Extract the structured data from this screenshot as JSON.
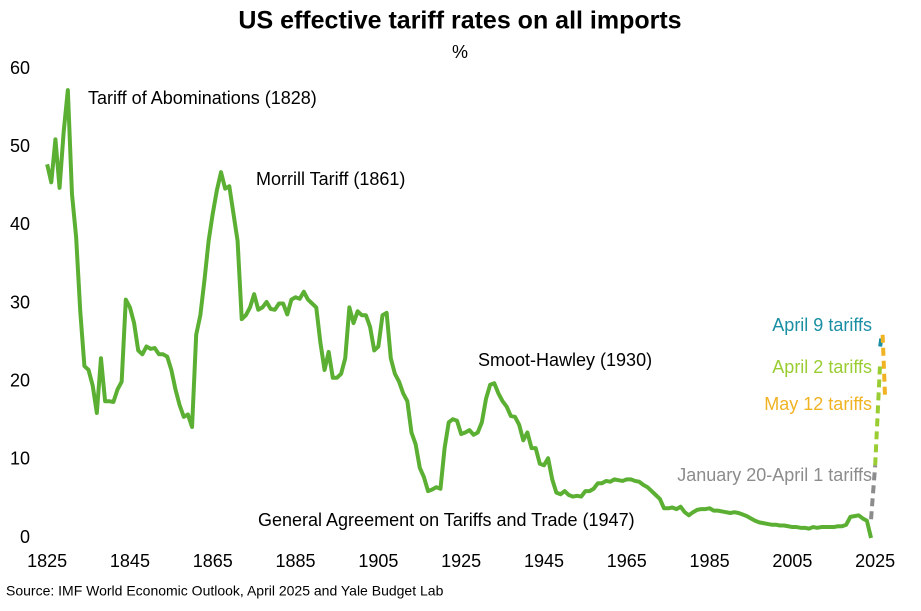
{
  "chart_data": {
    "type": "line",
    "title": "US effective tariff rates on all imports",
    "subtitle": "%",
    "source": "Source: IMF World Economic Outlook, April 2025 and Yale Budget Lab",
    "xlim": [
      1824,
      2028
    ],
    "xticks": [
      1825,
      1845,
      1865,
      1885,
      1905,
      1925,
      1945,
      1965,
      1985,
      2005,
      2025
    ],
    "ylim": [
      0,
      60
    ],
    "yticks": [
      0,
      10,
      20,
      30,
      40,
      50,
      60
    ],
    "annotations": [
      "Tariff of Abominations (1828)",
      "Morrill Tariff (1861)",
      "Smoot-Hawley (1930)",
      "General Agreement on Tariffs and Trade (1947)"
    ],
    "series": [
      {
        "color": "#5bb033",
        "dashed": false,
        "x": [
          1825,
          1826,
          1827,
          1828,
          1829,
          1830,
          1831,
          1832,
          1833,
          1834,
          1835,
          1836,
          1837,
          1838,
          1839,
          1840,
          1841,
          1842,
          1843,
          1844,
          1845,
          1846,
          1847,
          1848,
          1849,
          1850,
          1851,
          1852,
          1853,
          1854,
          1855,
          1856,
          1857,
          1858,
          1859,
          1860,
          1861,
          1862,
          1863,
          1864,
          1865,
          1866,
          1867,
          1868,
          1869,
          1870,
          1871,
          1872,
          1873,
          1874,
          1875,
          1876,
          1877,
          1878,
          1879,
          1880,
          1881,
          1882,
          1883,
          1884,
          1885,
          1886,
          1887,
          1888,
          1889,
          1890,
          1891,
          1892,
          1893,
          1894,
          1895,
          1896,
          1897,
          1898,
          1899,
          1900,
          1901,
          1902,
          1903,
          1904,
          1905,
          1906,
          1907,
          1908,
          1909,
          1910,
          1911,
          1912,
          1913,
          1914,
          1915,
          1916,
          1917,
          1918,
          1919,
          1920,
          1921,
          1922,
          1923,
          1924,
          1925,
          1926,
          1927,
          1928,
          1929,
          1930,
          1931,
          1932,
          1933,
          1934,
          1935,
          1936,
          1937,
          1938,
          1939,
          1940,
          1941,
          1942,
          1943,
          1944,
          1945,
          1946,
          1947,
          1948,
          1949,
          1950,
          1951,
          1952,
          1953,
          1954,
          1955,
          1956,
          1957,
          1958,
          1959,
          1960,
          1961,
          1962,
          1963,
          1964,
          1965,
          1966,
          1967,
          1968,
          1969,
          1970,
          1971,
          1972,
          1973,
          1974,
          1975,
          1976,
          1977,
          1978,
          1979,
          1980,
          1981,
          1982,
          1983,
          1984,
          1985,
          1986,
          1987,
          1988,
          1989,
          1990,
          1991,
          1992,
          1993,
          1994,
          1995,
          1996,
          1997,
          1998,
          1999,
          2000,
          2001,
          2002,
          2003,
          2004,
          2005,
          2006,
          2007,
          2008,
          2009,
          2010,
          2011,
          2012,
          2013,
          2014,
          2015,
          2016,
          2017,
          2018,
          2019,
          2020,
          2021,
          2022,
          2023,
          2024
        ],
        "values": [
          47.8,
          45.5,
          51,
          44.8,
          52,
          57.3,
          44,
          38.5,
          29,
          22,
          21.5,
          19.5,
          16,
          23,
          17.5,
          17.5,
          17.4,
          19,
          20,
          30.5,
          29.5,
          27.5,
          24,
          23.5,
          24.5,
          24.2,
          24.3,
          23.5,
          23.5,
          23.2,
          21.5,
          19,
          17,
          15.5,
          15.8,
          14.2,
          26,
          28.5,
          33,
          38,
          41.5,
          44.5,
          46.8,
          44.7,
          45,
          41.5,
          38,
          28,
          28.5,
          29.5,
          31.2,
          29.2,
          29.5,
          30.2,
          29.3,
          29.2,
          30,
          30,
          28.6,
          30.5,
          30.8,
          30.6,
          31.5,
          30.5,
          30,
          29.5,
          25,
          21.5,
          23.8,
          20.5,
          20.5,
          21,
          23,
          29.5,
          27.5,
          29,
          28.5,
          28.5,
          27,
          24,
          24.5,
          28.5,
          28.8,
          23,
          21,
          20,
          18.5,
          17.5,
          13.5,
          12,
          9,
          7.8,
          6,
          6.2,
          6.5,
          6.3,
          11.5,
          14.8,
          15.2,
          15,
          13.3,
          13.5,
          13.8,
          13.2,
          13.5,
          14.8,
          17.8,
          19.6,
          19.8,
          18.5,
          17.5,
          16.8,
          15.6,
          15.5,
          14.5,
          12.5,
          13.5,
          11.5,
          11.5,
          9.5,
          9.3,
          10.2,
          7.5,
          5.8,
          5.6,
          6,
          5.5,
          5.3,
          5.4,
          5.3,
          6,
          6,
          6.3,
          7,
          7,
          7.3,
          7.2,
          7.5,
          7.4,
          7.3,
          7.5,
          7.5,
          7.3,
          7.2,
          6.8,
          6.5,
          6,
          5.5,
          5,
          3.8,
          3.8,
          3.9,
          3.7,
          4,
          3.3,
          2.9,
          3.3,
          3.6,
          3.7,
          3.7,
          3.8,
          3.5,
          3.5,
          3.4,
          3.3,
          3.2,
          3.3,
          3.2,
          3,
          2.8,
          2.5,
          2.2,
          2,
          1.9,
          1.8,
          1.7,
          1.7,
          1.6,
          1.6,
          1.5,
          1.4,
          1.4,
          1.3,
          1.3,
          1.2,
          1.4,
          1.3,
          1.4,
          1.4,
          1.4,
          1.4,
          1.5,
          1.5,
          1.7,
          2.7,
          2.8,
          2.9,
          2.5,
          2.2,
          0
        ]
      },
      {
        "name": "January 20-April 1 tariffs",
        "color": "#8c8c8c",
        "dashed": true,
        "x": [
          2024,
          2025
        ],
        "values": [
          2.4,
          9.3
        ]
      },
      {
        "name": "April 2 tariffs",
        "color": "#9acd32",
        "dashed": true,
        "x": [
          2025,
          2026.2
        ],
        "values": [
          9.3,
          22.5
        ]
      },
      {
        "name": "April 9 tariffs",
        "color": "#1a8fa3",
        "dashed": true,
        "x": [
          2026.2,
          2026.6
        ],
        "values": [
          24.5,
          26
        ]
      },
      {
        "name": "May 12 tariffs",
        "color": "#f0b323",
        "dashed": true,
        "x": [
          2026.8,
          2027.4
        ],
        "values": [
          26,
          17.8
        ]
      }
    ]
  }
}
